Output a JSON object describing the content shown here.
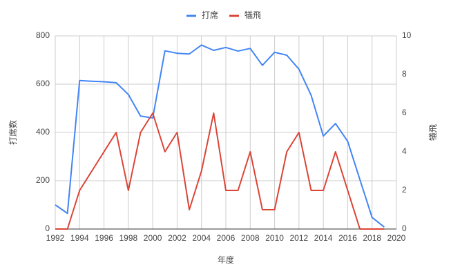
{
  "chart_data": {
    "type": "line",
    "x": [
      1992,
      1993,
      1994,
      1995,
      1996,
      1997,
      1998,
      1999,
      2000,
      2001,
      2002,
      2003,
      2004,
      2005,
      2006,
      2007,
      2008,
      2009,
      2010,
      2011,
      2012,
      2013,
      2014,
      2015,
      2016,
      2017,
      2018,
      2019
    ],
    "series": [
      {
        "name": "打席",
        "color": "#4285f4",
        "values": [
          100,
          65,
          615,
          612,
          610,
          606,
          557,
          468,
          460,
          738,
          728,
          725,
          762,
          740,
          752,
          737,
          748,
          678,
          732,
          720,
          662,
          554,
          385,
          437,
          363,
          205,
          48,
          8
        ]
      },
      {
        "name": "犠飛",
        "color": "#db4437",
        "axis": "y2",
        "values": [
          0,
          0,
          2,
          3,
          4,
          5,
          2,
          5,
          6,
          4,
          5,
          1,
          3,
          6,
          2,
          2,
          4,
          1,
          1,
          4,
          5,
          2,
          2,
          4,
          2,
          0,
          0,
          0
        ]
      }
    ],
    "xlabel": "年度",
    "ylabel": "打席数",
    "y2label": "犠飛",
    "xlim": [
      1992,
      2020
    ],
    "xticks": [
      1992,
      1994,
      1996,
      1998,
      2000,
      2002,
      2004,
      2006,
      2008,
      2010,
      2012,
      2014,
      2016,
      2018,
      2020
    ],
    "ylim": [
      0,
      800
    ],
    "yticks": [
      0,
      200,
      400,
      600,
      800
    ],
    "y2lim": [
      0,
      10
    ],
    "y2ticks": [
      0,
      2,
      4,
      6,
      8,
      10
    ],
    "grid": true,
    "legend": "top"
  }
}
